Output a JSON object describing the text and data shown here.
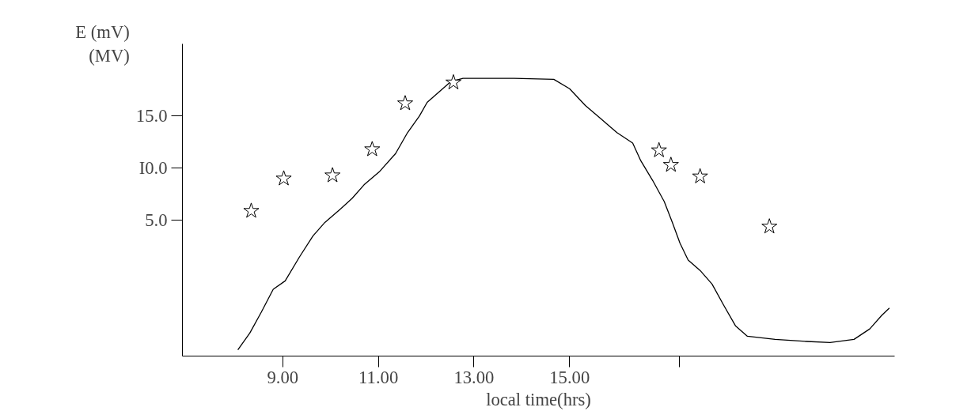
{
  "chart_data": {
    "type": "line",
    "ylabel": "E (mV)",
    "xlabel": "local time(hrs)",
    "annotations": [
      "(MV)"
    ],
    "xlim": [
      6.9,
      21.8
    ],
    "ylim": [
      -8,
      21.9
    ],
    "xticks": [
      {
        "value": 9,
        "label": "9.00"
      },
      {
        "value": 11,
        "label": "11.00"
      },
      {
        "value": 13,
        "label": "13.00"
      },
      {
        "value": 15,
        "label": "15.00"
      },
      {
        "value": 17.3,
        "label": null
      }
    ],
    "yticks": [
      {
        "value": 5,
        "label": "5.0"
      },
      {
        "value": 10,
        "label": "I0.0"
      },
      {
        "value": 15,
        "label": "15.0"
      }
    ],
    "grid": false,
    "series": [
      {
        "color": "#000000",
        "marker": "none",
        "line_style": "solid",
        "x": [
          8.06,
          8.31,
          8.55,
          8.8,
          9.05,
          9.35,
          9.63,
          9.88,
          10.21,
          10.45,
          10.7,
          11.03,
          11.36,
          11.61,
          11.86,
          12.02,
          12.27,
          12.52,
          12.77,
          13.84,
          14.67,
          15.0,
          15.33,
          15.66,
          15.99,
          16.32,
          16.49,
          16.74,
          16.98,
          17.15,
          17.31,
          17.48,
          17.73,
          17.98,
          18.22,
          18.47,
          18.72,
          19.3,
          19.96,
          20.45,
          20.95,
          21.28,
          21.53,
          21.69
        ],
        "values": [
          -7.4,
          -5.8,
          -3.8,
          -1.6,
          -0.8,
          1.5,
          3.5,
          4.8,
          6.1,
          7.1,
          8.4,
          9.7,
          11.4,
          13.4,
          15.0,
          16.3,
          17.3,
          18.3,
          18.6,
          18.6,
          18.5,
          17.6,
          16.0,
          14.7,
          13.4,
          12.4,
          10.7,
          8.8,
          6.8,
          4.8,
          2.8,
          1.2,
          0.2,
          -1.1,
          -3.1,
          -5.1,
          -6.1,
          -6.4,
          -6.6,
          -6.7,
          -6.4,
          -5.4,
          -4.1,
          -3.4
        ]
      },
      {
        "type": "scatter",
        "color": "#000000",
        "marker": "star",
        "x": [
          8.34,
          9.02,
          10.04,
          10.87,
          11.56,
          12.57,
          16.87,
          17.12,
          17.73,
          19.18
        ],
        "values": [
          5.9,
          9.0,
          9.3,
          11.8,
          16.2,
          18.2,
          11.7,
          10.3,
          9.2,
          4.4
        ]
      }
    ]
  }
}
